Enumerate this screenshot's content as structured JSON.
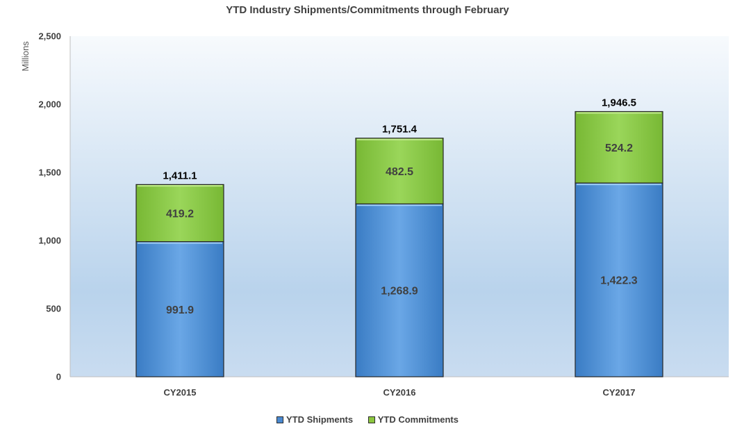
{
  "chart_data": {
    "type": "bar",
    "stacked": true,
    "title": "YTD Industry Shipments/Commitments through February",
    "ylabel": "Millions",
    "xlabel": "",
    "categories": [
      "CY2015",
      "CY2016",
      "CY2017"
    ],
    "ylim": [
      0,
      2500
    ],
    "yticks": [
      "0",
      "500",
      "1,000",
      "1,500",
      "2,000",
      "2,500"
    ],
    "series": [
      {
        "name": "YTD Shipments",
        "values": [
          991.9,
          1268.9,
          1422.3
        ],
        "labels": [
          "991.9",
          "1,268.9",
          "1,422.3"
        ],
        "color": "#5b9bd5"
      },
      {
        "name": "YTD Commitments",
        "values": [
          419.2,
          482.5,
          524.2
        ],
        "labels": [
          "419.2",
          "482.5",
          "524.2"
        ],
        "color": "#92d050"
      }
    ],
    "totals": [
      "1,411.1",
      "1,751.4",
      "1,946.5"
    ],
    "legend": "bottom",
    "grid": false
  }
}
